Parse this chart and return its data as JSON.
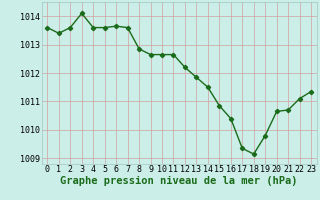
{
  "x": [
    0,
    1,
    2,
    3,
    4,
    5,
    6,
    7,
    8,
    9,
    10,
    11,
    12,
    13,
    14,
    15,
    16,
    17,
    18,
    19,
    20,
    21,
    22,
    23
  ],
  "y": [
    1013.6,
    1013.4,
    1013.6,
    1014.1,
    1013.6,
    1013.6,
    1013.65,
    1013.6,
    1012.85,
    1012.65,
    1012.65,
    1012.65,
    1012.2,
    1011.85,
    1011.5,
    1010.85,
    1010.4,
    1009.35,
    1009.15,
    1009.8,
    1010.65,
    1010.7,
    1011.1,
    1011.35
  ],
  "line_color": "#1a6b1a",
  "marker": "D",
  "marker_size": 2.2,
  "linewidth": 1.0,
  "bg_color": "#cceee8",
  "grid_color": "#aaddcc",
  "xlabel": "Graphe pression niveau de la mer (hPa)",
  "xlabel_color": "#1a6b1a",
  "xlabel_fontsize": 7.5,
  "xlim": [
    -0.5,
    23.5
  ],
  "ylim": [
    1008.8,
    1014.5
  ],
  "yticks": [
    1009,
    1010,
    1011,
    1012,
    1013,
    1014
  ],
  "xticks": [
    0,
    1,
    2,
    3,
    4,
    5,
    6,
    7,
    8,
    9,
    10,
    11,
    12,
    13,
    14,
    15,
    16,
    17,
    18,
    19,
    20,
    21,
    22,
    23
  ],
  "tick_fontsize": 6.0
}
